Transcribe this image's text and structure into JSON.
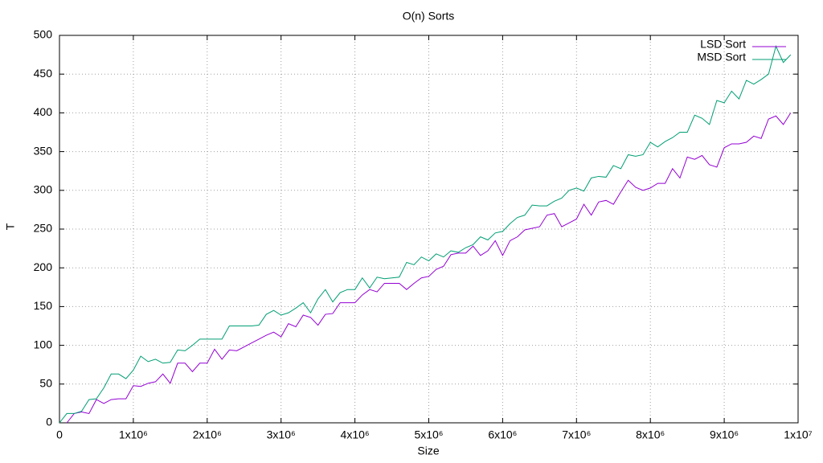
{
  "chart_data": {
    "type": "line",
    "title": "O(n) Sorts",
    "x_label": "Size",
    "y_label": "T",
    "x": [
      0,
      100000,
      200000,
      300000,
      400000,
      500000,
      600000,
      700000,
      800000,
      900000,
      1000000,
      1100000,
      1200000,
      1300000,
      1400000,
      1500000,
      1600000,
      1700000,
      1800000,
      1900000,
      2000000,
      2100000,
      2200000,
      2300000,
      2400000,
      2500000,
      2600000,
      2700000,
      2800000,
      2900000,
      3000000,
      3100000,
      3200000,
      3300000,
      3400000,
      3500000,
      3600000,
      3700000,
      3800000,
      3900000,
      4000000,
      4100000,
      4200000,
      4300000,
      4400000,
      4500000,
      4600000,
      4700000,
      4800000,
      4900000,
      5000000,
      5100000,
      5200000,
      5300000,
      5400000,
      5500000,
      5600000,
      5700000,
      5800000,
      5900000,
      6000000,
      6100000,
      6200000,
      6300000,
      6400000,
      6500000,
      6600000,
      6700000,
      6800000,
      6900000,
      7000000,
      7100000,
      7200000,
      7300000,
      7400000,
      7500000,
      7600000,
      7700000,
      7800000,
      7900000,
      8000000,
      8100000,
      8200000,
      8300000,
      8400000,
      8500000,
      8600000,
      8700000,
      8800000,
      8900000,
      9000000,
      9100000,
      9200000,
      9300000,
      9400000,
      9500000,
      9600000,
      9700000,
      9800000,
      9900000
    ],
    "series": [
      {
        "name": "LSD Sort",
        "color": "#9400d3",
        "values": [
          null,
          0,
          12,
          14,
          12,
          30,
          25,
          30,
          31,
          31,
          48,
          47,
          51,
          53,
          63,
          51,
          77,
          77,
          66,
          77,
          77,
          95,
          82,
          94,
          93,
          98,
          103,
          108,
          113,
          117,
          111,
          128,
          124,
          139,
          136,
          126,
          140,
          141,
          155,
          155,
          155,
          165,
          172,
          169,
          180,
          180,
          180,
          172,
          180,
          187,
          189,
          198,
          202,
          217,
          219,
          219,
          228,
          216,
          222,
          235,
          216,
          235,
          240,
          249,
          251,
          253,
          268,
          270,
          253,
          258,
          263,
          282,
          268,
          285,
          287,
          282,
          298,
          313,
          304,
          300,
          303,
          309,
          309,
          328,
          316,
          343,
          340,
          345,
          333,
          330,
          355,
          360,
          360,
          362,
          370,
          367,
          392,
          396,
          385,
          400
        ]
      },
      {
        "name": "MSD Sort",
        "color": "#009e73",
        "values": [
          0,
          12,
          12,
          15,
          30,
          31,
          45,
          63,
          63,
          57,
          68,
          86,
          79,
          82,
          77,
          78,
          94,
          93,
          100,
          108,
          108,
          108,
          108,
          125,
          125,
          125,
          125,
          126,
          140,
          145,
          139,
          142,
          148,
          155,
          142,
          160,
          172,
          156,
          168,
          172,
          172,
          187,
          174,
          188,
          186,
          187,
          188,
          207,
          204,
          214,
          209,
          218,
          214,
          222,
          220,
          226,
          230,
          240,
          236,
          245,
          247,
          257,
          265,
          268,
          281,
          280,
          280,
          286,
          290,
          300,
          303,
          299,
          316,
          318,
          317,
          332,
          328,
          346,
          344,
          346,
          362,
          356,
          363,
          368,
          375,
          375,
          397,
          393,
          385,
          416,
          413,
          428,
          418,
          442,
          437,
          443,
          450,
          486,
          465,
          475
        ]
      }
    ],
    "xlim": [
      0,
      10000000
    ],
    "xticks": [
      0,
      {
        "value": 1000000,
        "label": "1x10⁶"
      },
      {
        "value": 2000000,
        "label": "2x10⁶"
      },
      {
        "value": 3000000,
        "label": "3x10⁶"
      },
      {
        "value": 4000000,
        "label": "4x10⁶"
      },
      {
        "value": 5000000,
        "label": "5x10⁶"
      },
      {
        "value": 6000000,
        "label": "6x10⁶"
      },
      {
        "value": 7000000,
        "label": "7x10⁶"
      },
      {
        "value": 8000000,
        "label": "8x10⁶"
      },
      {
        "value": 9000000,
        "label": "9x10⁶"
      },
      {
        "value": 10000000,
        "label": "1x10⁷"
      }
    ],
    "ylim": [
      0,
      500
    ],
    "yticks": [
      0,
      50,
      100,
      150,
      200,
      250,
      300,
      350,
      400,
      450,
      500
    ],
    "grid": true,
    "legend": "top-right"
  }
}
